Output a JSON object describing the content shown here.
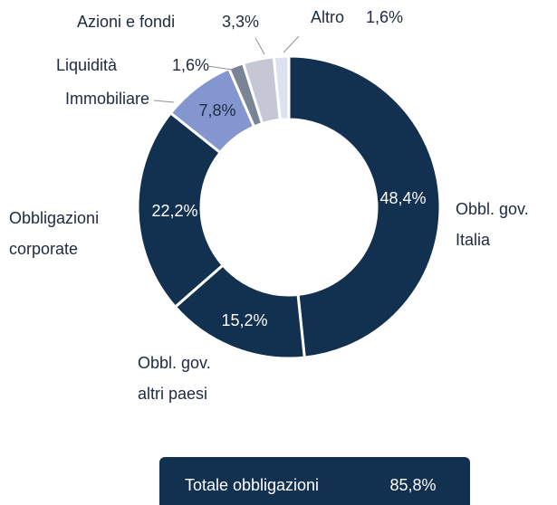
{
  "chart_data": {
    "type": "donut",
    "categories": [
      [
        "Obbl. gov.",
        "Italia"
      ],
      [
        "Obbl. gov.",
        "altri paesi"
      ],
      [
        "Obbligazioni",
        "corporate"
      ],
      [
        "Immobiliare"
      ],
      [
        "Liquidità"
      ],
      [
        "Azioni e fondi"
      ],
      [
        "Altro"
      ]
    ],
    "values": [
      48.4,
      15.2,
      22.2,
      7.8,
      1.6,
      3.3,
      1.6
    ],
    "value_labels": [
      "48,4%",
      "15,2%",
      "22,2%",
      "7,8%",
      "1,6%",
      "3,3%",
      "1,6%"
    ],
    "colors": [
      "#12304f",
      "#12304f",
      "#12304f",
      "#8496d0",
      "#7a8497",
      "#c5c8d4",
      "#dde3ee"
    ],
    "annotation": {
      "label": "Totale obbligazioni",
      "value_label": "85,8%"
    }
  }
}
